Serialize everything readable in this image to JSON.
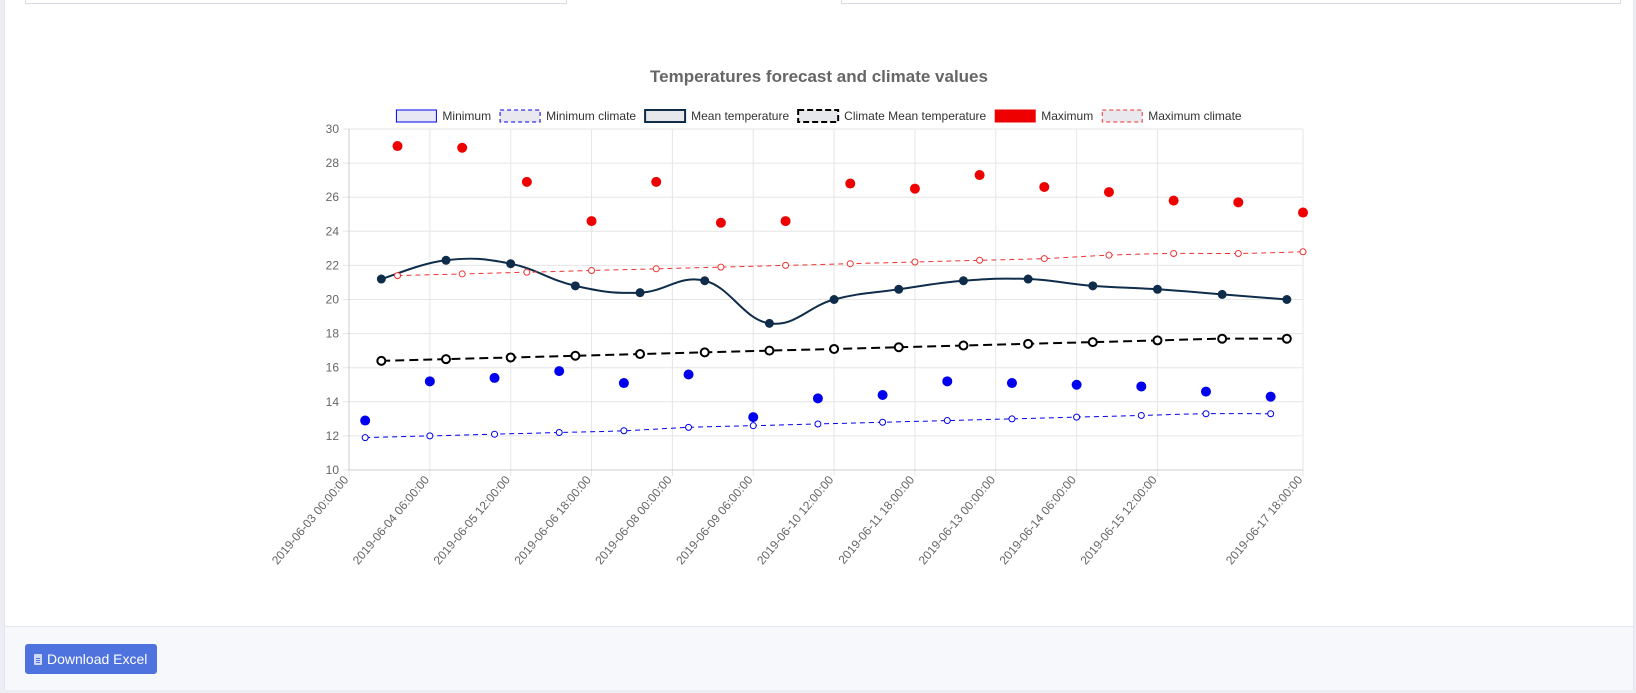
{
  "chart_data": {
    "type": "line",
    "title": "Temperatures forecast and climate values",
    "x_start": "2019-06-03 00:00:00",
    "x_end": "2019-06-17 18:00:00",
    "x_tick_labels": [
      "2019-06-03 00:00:00",
      "2019-06-04 06:00:00",
      "2019-06-05 12:00:00",
      "2019-06-06 18:00:00",
      "2019-06-08 00:00:00",
      "2019-06-09 06:00:00",
      "2019-06-10 12:00:00",
      "2019-06-11 18:00:00",
      "2019-06-13 00:00:00",
      "2019-06-14 06:00:00",
      "2019-06-15 12:00:00",
      "2019-06-17 18:00:00"
    ],
    "ylim": [
      10,
      30
    ],
    "y_ticks": [
      10,
      12,
      14,
      16,
      18,
      20,
      22,
      24,
      26,
      28,
      30
    ],
    "grid": true,
    "legend_position": "top",
    "series": [
      {
        "name": "Minimum",
        "style": "points",
        "color": "#0000ee",
        "points": [
          [
            "2019-06-03 06:00",
            12.9
          ],
          [
            "2019-06-04 06:00",
            15.2
          ],
          [
            "2019-06-05 06:00",
            15.4
          ],
          [
            "2019-06-06 06:00",
            15.8
          ],
          [
            "2019-06-07 06:00",
            15.1
          ],
          [
            "2019-06-08 06:00",
            15.6
          ],
          [
            "2019-06-09 06:00",
            13.1
          ],
          [
            "2019-06-10 06:00",
            14.2
          ],
          [
            "2019-06-11 06:00",
            14.4
          ],
          [
            "2019-06-12 06:00",
            15.2
          ],
          [
            "2019-06-13 06:00",
            15.1
          ],
          [
            "2019-06-14 06:00",
            15.0
          ],
          [
            "2019-06-15 06:00",
            14.9
          ],
          [
            "2019-06-16 06:00",
            14.6
          ],
          [
            "2019-06-17 06:00",
            14.3
          ]
        ]
      },
      {
        "name": "Minimum climate",
        "style": "dashed-fine",
        "color": "#0000ee",
        "points": [
          [
            "2019-06-03 06:00",
            11.9
          ],
          [
            "2019-06-04 06:00",
            12.0
          ],
          [
            "2019-06-05 06:00",
            12.1
          ],
          [
            "2019-06-06 06:00",
            12.2
          ],
          [
            "2019-06-07 06:00",
            12.3
          ],
          [
            "2019-06-08 06:00",
            12.5
          ],
          [
            "2019-06-09 06:00",
            12.6
          ],
          [
            "2019-06-10 06:00",
            12.7
          ],
          [
            "2019-06-11 06:00",
            12.8
          ],
          [
            "2019-06-12 06:00",
            12.9
          ],
          [
            "2019-06-13 06:00",
            13.0
          ],
          [
            "2019-06-14 06:00",
            13.1
          ],
          [
            "2019-06-15 06:00",
            13.2
          ],
          [
            "2019-06-16 06:00",
            13.3
          ],
          [
            "2019-06-17 06:00",
            13.3
          ]
        ]
      },
      {
        "name": "Mean temperature",
        "style": "solid",
        "color": "#0f2d4a",
        "points": [
          [
            "2019-06-03 12:00",
            21.2
          ],
          [
            "2019-06-04 12:00",
            22.3
          ],
          [
            "2019-06-05 12:00",
            22.1
          ],
          [
            "2019-06-06 12:00",
            20.8
          ],
          [
            "2019-06-07 12:00",
            20.4
          ],
          [
            "2019-06-08 12:00",
            21.1
          ],
          [
            "2019-06-09 12:00",
            18.6
          ],
          [
            "2019-06-10 12:00",
            20.0
          ],
          [
            "2019-06-11 12:00",
            20.6
          ],
          [
            "2019-06-12 12:00",
            21.1
          ],
          [
            "2019-06-13 12:00",
            21.2
          ],
          [
            "2019-06-14 12:00",
            20.8
          ],
          [
            "2019-06-15 12:00",
            20.6
          ],
          [
            "2019-06-16 12:00",
            20.3
          ],
          [
            "2019-06-17 12:00",
            20.0
          ]
        ]
      },
      {
        "name": "Climate Mean temperature",
        "style": "dashed-bold",
        "color": "#000000",
        "points": [
          [
            "2019-06-03 12:00",
            16.4
          ],
          [
            "2019-06-04 12:00",
            16.5
          ],
          [
            "2019-06-05 12:00",
            16.6
          ],
          [
            "2019-06-06 12:00",
            16.7
          ],
          [
            "2019-06-07 12:00",
            16.8
          ],
          [
            "2019-06-08 12:00",
            16.9
          ],
          [
            "2019-06-09 12:00",
            17.0
          ],
          [
            "2019-06-10 12:00",
            17.1
          ],
          [
            "2019-06-11 12:00",
            17.2
          ],
          [
            "2019-06-12 12:00",
            17.3
          ],
          [
            "2019-06-13 12:00",
            17.4
          ],
          [
            "2019-06-14 12:00",
            17.5
          ],
          [
            "2019-06-15 12:00",
            17.6
          ],
          [
            "2019-06-16 12:00",
            17.7
          ],
          [
            "2019-06-17 12:00",
            17.7
          ]
        ]
      },
      {
        "name": "Maximum",
        "style": "points",
        "color": "#ee0000",
        "points": [
          [
            "2019-06-03 18:00",
            29.0
          ],
          [
            "2019-06-04 18:00",
            28.9
          ],
          [
            "2019-06-05 18:00",
            26.9
          ],
          [
            "2019-06-06 18:00",
            24.6
          ],
          [
            "2019-06-07 18:00",
            26.9
          ],
          [
            "2019-06-08 18:00",
            24.5
          ],
          [
            "2019-06-09 18:00",
            24.6
          ],
          [
            "2019-06-10 18:00",
            26.8
          ],
          [
            "2019-06-11 18:00",
            26.5
          ],
          [
            "2019-06-12 18:00",
            27.3
          ],
          [
            "2019-06-13 18:00",
            26.6
          ],
          [
            "2019-06-14 18:00",
            26.3
          ],
          [
            "2019-06-15 18:00",
            25.8
          ],
          [
            "2019-06-16 18:00",
            25.7
          ],
          [
            "2019-06-17 18:00",
            25.1
          ]
        ]
      },
      {
        "name": "Maximum climate",
        "style": "dashed-fine",
        "color": "#ee3333",
        "points": [
          [
            "2019-06-03 18:00",
            21.4
          ],
          [
            "2019-06-04 18:00",
            21.5
          ],
          [
            "2019-06-05 18:00",
            21.6
          ],
          [
            "2019-06-06 18:00",
            21.7
          ],
          [
            "2019-06-07 18:00",
            21.8
          ],
          [
            "2019-06-08 18:00",
            21.9
          ],
          [
            "2019-06-09 18:00",
            22.0
          ],
          [
            "2019-06-10 18:00",
            22.1
          ],
          [
            "2019-06-11 18:00",
            22.2
          ],
          [
            "2019-06-12 18:00",
            22.3
          ],
          [
            "2019-06-13 18:00",
            22.4
          ],
          [
            "2019-06-14 18:00",
            22.6
          ],
          [
            "2019-06-15 18:00",
            22.7
          ],
          [
            "2019-06-16 18:00",
            22.7
          ],
          [
            "2019-06-17 18:00",
            22.8
          ]
        ]
      }
    ]
  },
  "footer": {
    "download_label": "Download Excel",
    "download_icon": "file-excel-icon"
  },
  "colors": {
    "accent": "#4e73df",
    "minimum": "#0000ee",
    "maximum": "#ee0000",
    "mean": "#0f2d4a"
  }
}
